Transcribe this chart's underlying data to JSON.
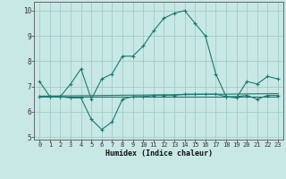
{
  "xlabel": "Humidex (Indice chaleur)",
  "x": [
    0,
    1,
    2,
    3,
    4,
    5,
    6,
    7,
    8,
    9,
    10,
    11,
    12,
    13,
    14,
    15,
    16,
    17,
    18,
    19,
    20,
    21,
    22,
    23
  ],
  "line1": [
    7.2,
    6.6,
    6.6,
    7.1,
    7.7,
    6.5,
    7.3,
    7.5,
    8.2,
    8.2,
    8.6,
    9.2,
    9.7,
    9.9,
    10.0,
    9.5,
    9.0,
    7.5,
    6.6,
    6.55,
    7.2,
    7.1,
    7.4,
    7.3
  ],
  "line2": [
    6.6,
    6.6,
    6.6,
    6.55,
    6.55,
    5.7,
    5.3,
    5.6,
    6.5,
    6.6,
    6.6,
    6.65,
    6.65,
    6.65,
    6.7,
    6.7,
    6.7,
    6.7,
    6.6,
    6.6,
    6.65,
    6.5,
    6.65,
    6.65
  ],
  "line3_x": [
    0,
    23
  ],
  "line3_y": [
    6.6,
    6.6
  ],
  "line4_x": [
    0,
    23
  ],
  "line4_y": [
    6.62,
    6.72
  ],
  "line_color": "#1a7a6e",
  "bg_color": "#c8e8e5",
  "grid_color": "#a0ccc8",
  "ylim": [
    4.9,
    10.35
  ],
  "yticks": [
    5,
    6,
    7,
    8,
    9,
    10
  ],
  "xlim": [
    -0.5,
    23.5
  ]
}
